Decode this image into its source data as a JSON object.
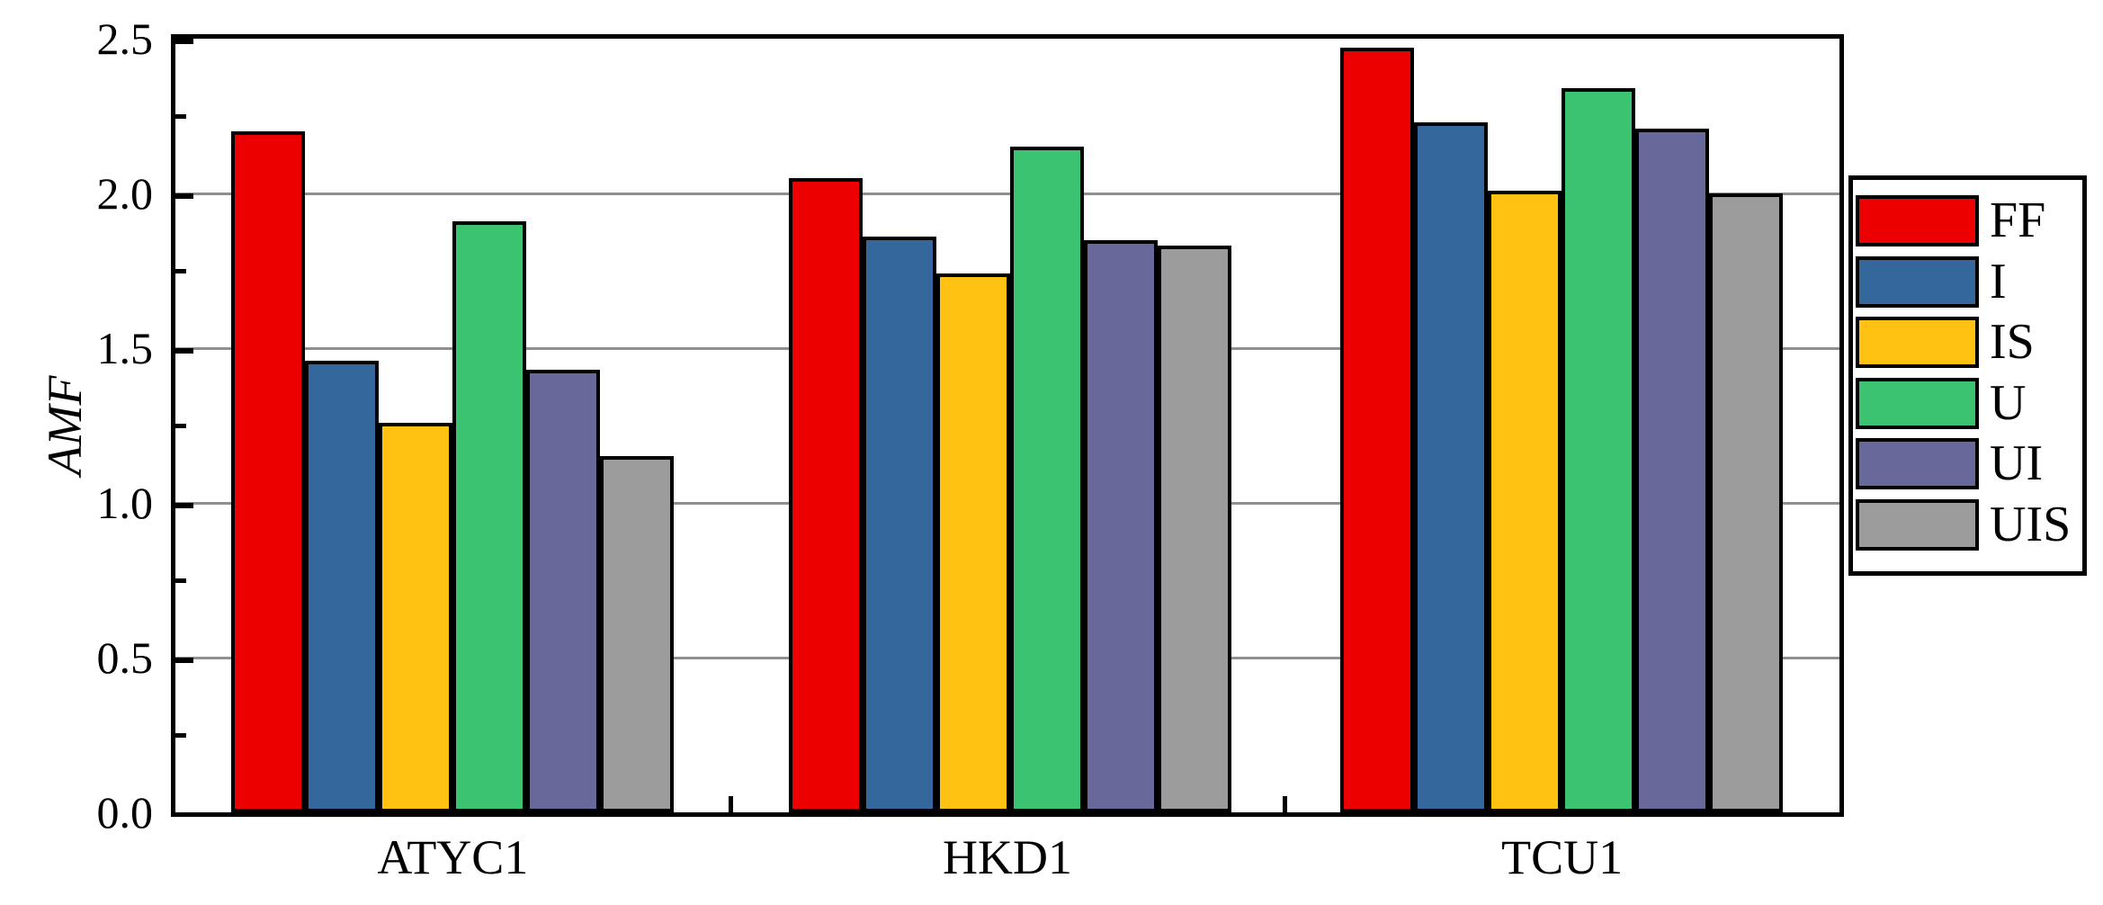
{
  "chart_data": {
    "type": "bar",
    "title": "",
    "xlabel": "",
    "ylabel": "AMF",
    "categories": [
      "ATYC1",
      "HKD1",
      "TCU1"
    ],
    "series": [
      {
        "name": "FF",
        "color": "#ec0000",
        "values": [
          2.2,
          2.05,
          2.47
        ]
      },
      {
        "name": "I",
        "color": "#34689c",
        "values": [
          1.46,
          1.86,
          2.23
        ]
      },
      {
        "name": "IS",
        "color": "#ffc213",
        "values": [
          1.26,
          1.74,
          2.01
        ]
      },
      {
        "name": "U",
        "color": "#3cc371",
        "values": [
          1.91,
          2.15,
          2.34
        ]
      },
      {
        "name": "UI",
        "color": "#67699b",
        "values": [
          1.43,
          1.85,
          2.21
        ]
      },
      {
        "name": "UIS",
        "color": "#9c9c9c",
        "values": [
          1.15,
          1.83,
          2.0
        ]
      }
    ],
    "ylim": [
      0,
      2.5
    ],
    "ytick_step": 0.5,
    "yminor_step": 0.25,
    "ytick_labels": [
      "0.0",
      "0.5",
      "1.0",
      "1.5",
      "2.0",
      "2.5"
    ],
    "grid": true,
    "grid_color": "#8f8f8f",
    "axis_color": "#000000",
    "legend_position": "right-outside",
    "legend_entries": [
      "FF",
      "I",
      "IS",
      "U",
      "UI",
      "UIS"
    ]
  }
}
